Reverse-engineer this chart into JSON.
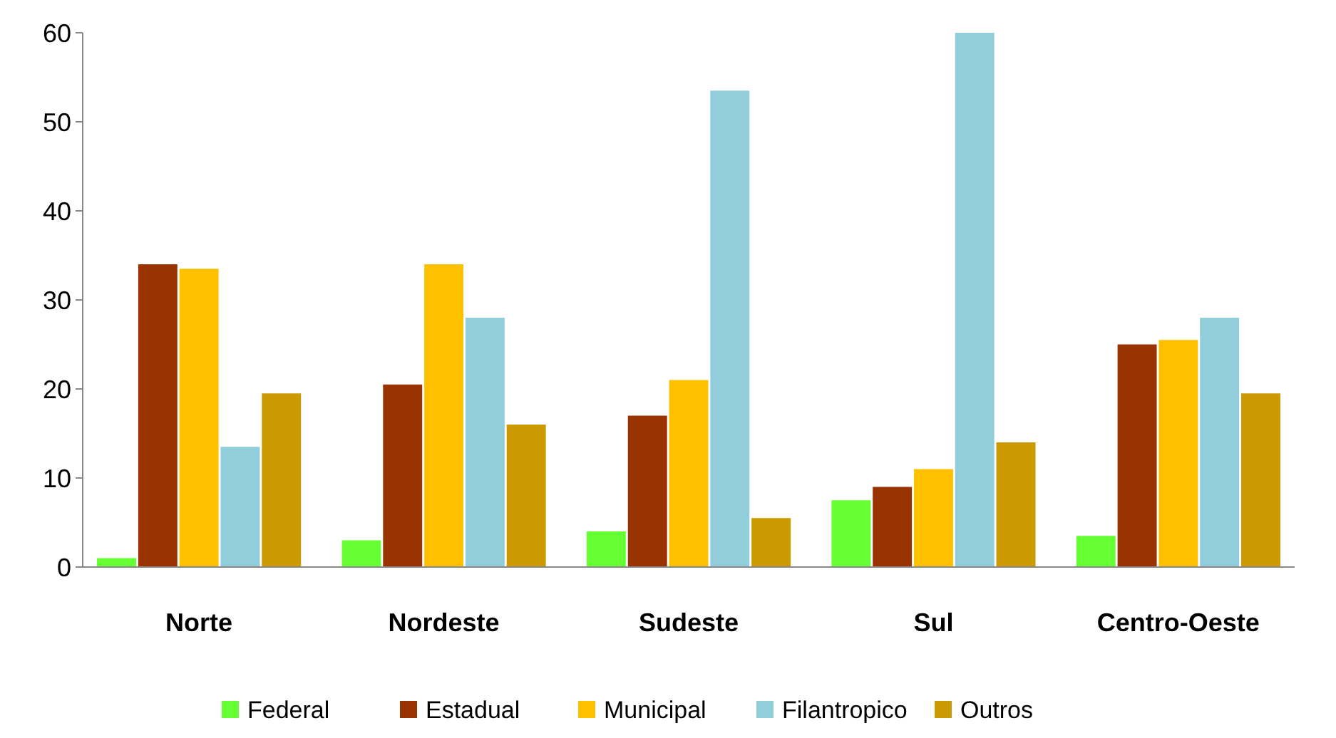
{
  "chart_data": {
    "type": "bar",
    "categories": [
      "Norte",
      "Nordeste",
      "Sudeste",
      "Sul",
      "Centro-Oeste"
    ],
    "series": [
      {
        "name": "Federal",
        "color": "#66ff33",
        "values": [
          1,
          3,
          4,
          7.5,
          3.5
        ]
      },
      {
        "name": "Estadual",
        "color": "#993300",
        "values": [
          34,
          20.5,
          17,
          9,
          25
        ]
      },
      {
        "name": "Municipal",
        "color": "#ffc000",
        "values": [
          33.5,
          34,
          21,
          11,
          25.5
        ]
      },
      {
        "name": "Filantropico",
        "color": "#92cddc",
        "values": [
          13.5,
          28,
          53.5,
          60,
          28
        ]
      },
      {
        "name": "Outros",
        "color": "#cc9900",
        "values": [
          19.5,
          16,
          5.5,
          14,
          19.5
        ]
      }
    ],
    "ylim": [
      0,
      60
    ],
    "yticks": [
      0,
      10,
      20,
      30,
      40,
      50,
      60
    ],
    "grid": false,
    "legend": "bottom"
  }
}
